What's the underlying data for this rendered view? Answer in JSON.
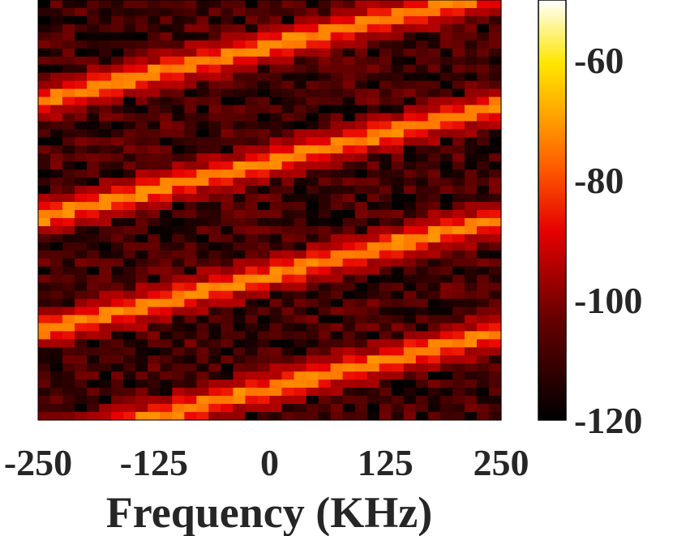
{
  "chart_data": {
    "type": "heatmap",
    "title": "",
    "xlabel": "Frequency (KHz)",
    "ylabel": "",
    "xlim": [
      -250,
      250
    ],
    "x_ticks": [
      -250,
      -125,
      0,
      125,
      250
    ],
    "x_tick_labels": [
      "-250",
      "-125",
      "0",
      "125",
      "250"
    ],
    "colorbar": {
      "range": [
        -120,
        -50
      ],
      "ticks": [
        -120,
        -100,
        -80,
        -60
      ],
      "tick_labels": [
        "-120",
        "-100",
        "-80",
        "-60"
      ],
      "colormap": "hot",
      "position": "right"
    },
    "grid": false,
    "background_range": [
      -120,
      -100
    ],
    "ridges": [
      {
        "start_freq": -250,
        "end_freq": 250,
        "start_row_frac": 0.24,
        "end_row_frac": -0.02,
        "peak": -75
      },
      {
        "start_freq": -250,
        "end_freq": 250,
        "start_row_frac": 0.52,
        "end_row_frac": 0.25,
        "peak": -75
      },
      {
        "start_freq": -250,
        "end_freq": 250,
        "start_row_frac": 0.79,
        "end_row_frac": 0.52,
        "peak": -75
      },
      {
        "start_freq": -250,
        "end_freq": 250,
        "start_row_frac": 1.06,
        "end_row_frac": 0.79,
        "peak": -75
      }
    ]
  }
}
